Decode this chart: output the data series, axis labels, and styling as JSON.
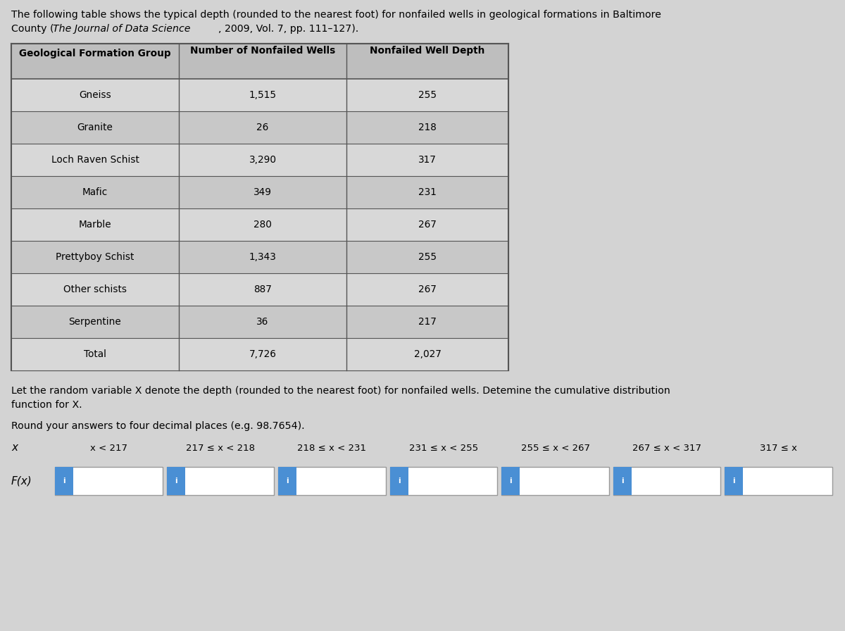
{
  "title_line1": "The following table shows the typical depth (rounded to the nearest foot) for nonfailed wells in geological formations in Baltimore",
  "title_line2": "County (The Journal of Data Science, 2009, Vol. 7, pp. 111–127).",
  "table_headers": [
    "Geological Formation Group",
    "Number of Nonfailed Wells",
    "Nonfailed Well Depth"
  ],
  "table_rows": [
    [
      "Gneiss",
      "1,515",
      "255"
    ],
    [
      "Granite",
      "26",
      "218"
    ],
    [
      "Loch Raven Schist",
      "3,290",
      "317"
    ],
    [
      "Mafic",
      "349",
      "231"
    ],
    [
      "Marble",
      "280",
      "267"
    ],
    [
      "Prettyboy Schist",
      "1,343",
      "255"
    ],
    [
      "Other schists",
      "887",
      "267"
    ],
    [
      "Serpentine",
      "36",
      "217"
    ],
    [
      "Total",
      "7,726",
      "2,027"
    ]
  ],
  "paragraph1": "Let the random variable X denote the depth (rounded to the nearest foot) for nonfailed wells. Detemine the cumulative distribution",
  "paragraph2": "function for X.",
  "paragraph3": "Round your answers to four decimal places (e.g. 98.7654).",
  "x_label": "x",
  "fx_label": "F(x)",
  "x_intervals": [
    "x < 217",
    "217 ≤ x < 218",
    "218 ≤ x < 231",
    "231 ≤ x < 255",
    "255 ≤ x < 267",
    "267 ≤ x < 317",
    "317 ≤ x"
  ],
  "bg_color": "#d3d3d3",
  "table_bg": "#d0d0d0",
  "header_bg": "#bebebe",
  "row_bg_odd": "#d8d8d8",
  "row_bg_even": "#c8c8c8",
  "border_color": "#888888",
  "border_color_dark": "#555555",
  "input_btn_color": "#4a8fd4",
  "input_bg": "#ffffff",
  "input_border": "#999999"
}
